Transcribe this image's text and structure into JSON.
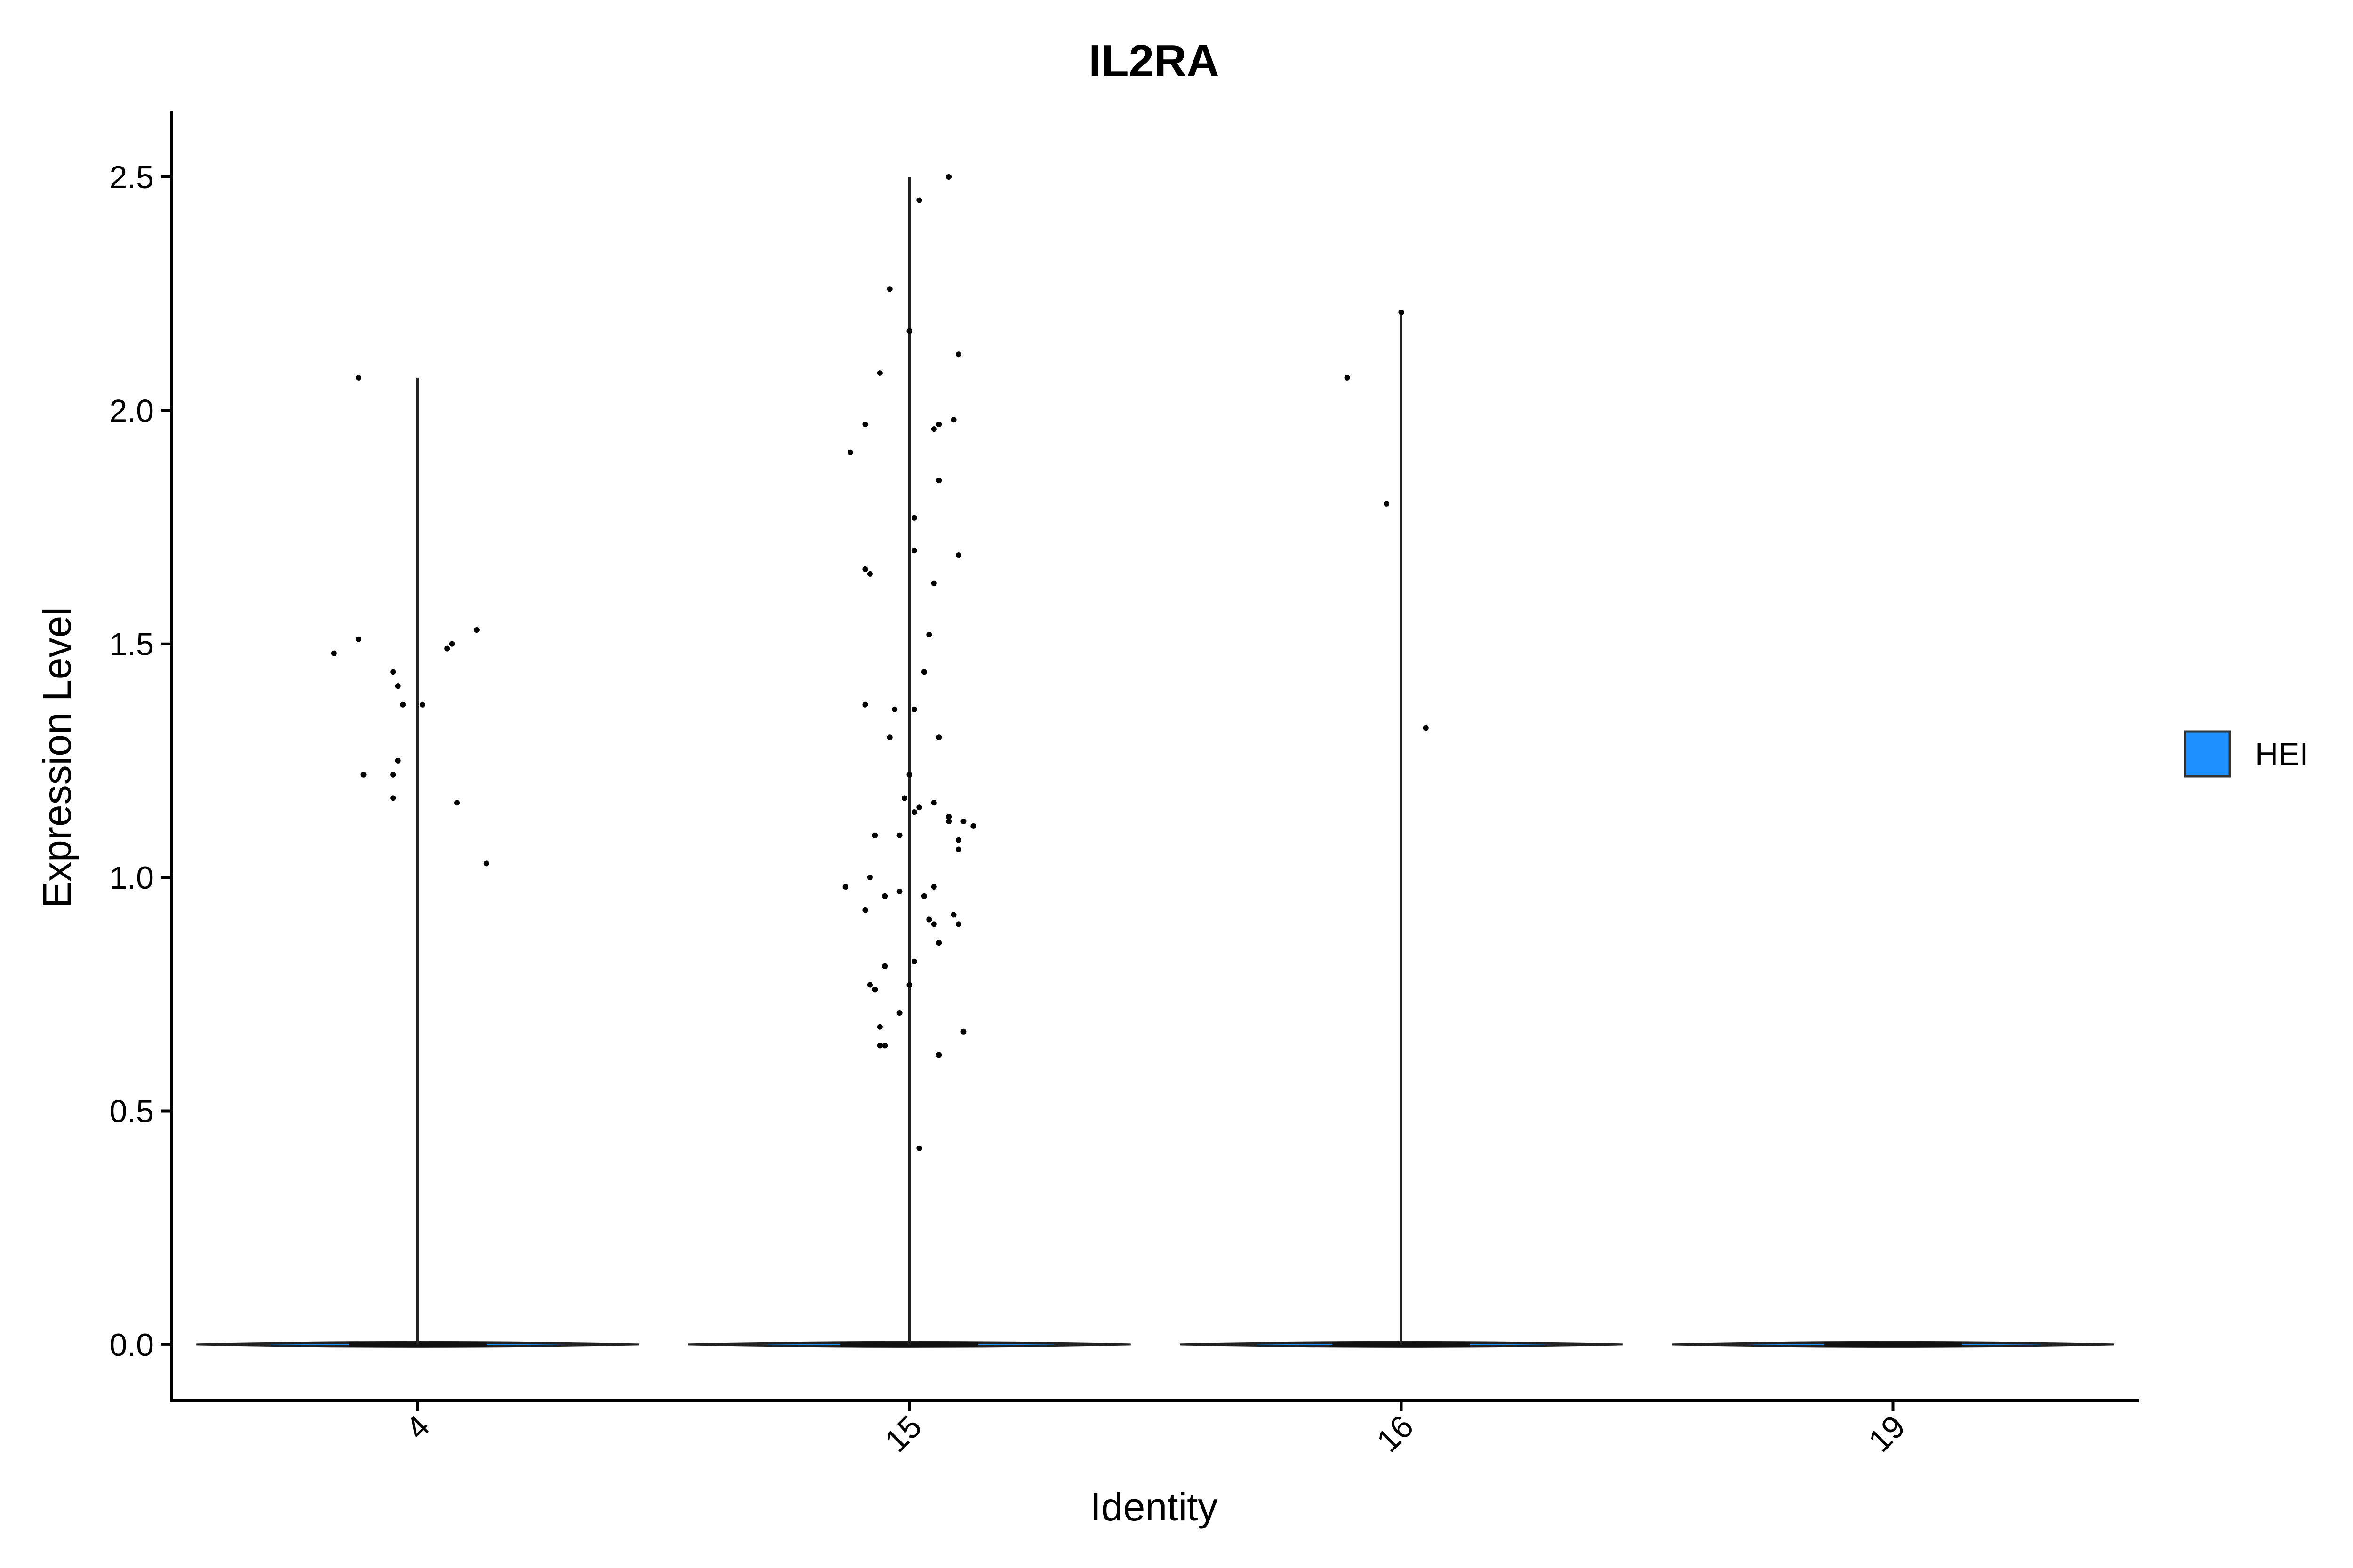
{
  "chart_data": {
    "type": "violin",
    "title": "IL2RA",
    "xlabel": "Identity",
    "ylabel": "Expression Level",
    "categories": [
      "4",
      "15",
      "16",
      "19"
    ],
    "ylim": [
      -0.12,
      2.64
    ],
    "yticks": [
      0.0,
      0.5,
      1.0,
      1.5,
      2.0,
      2.5
    ],
    "ytick_labels": [
      "0.0",
      "0.5",
      "1.0",
      "1.5",
      "2.0",
      "2.5"
    ],
    "grid": false,
    "legend": {
      "position": "right",
      "entries": [
        {
          "label": "HEI",
          "color": "#1E90FF"
        }
      ]
    },
    "violin_max": [
      2.07,
      2.5,
      2.21,
      0.0
    ],
    "points": {
      "4": [
        {
          "x": -0.12,
          "y": 2.07
        },
        {
          "x": -0.12,
          "y": 1.51
        },
        {
          "x": -0.17,
          "y": 1.48
        },
        {
          "x": -0.05,
          "y": 1.44
        },
        {
          "x": -0.04,
          "y": 1.41
        },
        {
          "x": -0.03,
          "y": 1.37
        },
        {
          "x": 0.01,
          "y": 1.37
        },
        {
          "x": 0.06,
          "y": 1.49
        },
        {
          "x": 0.07,
          "y": 1.5
        },
        {
          "x": 0.12,
          "y": 1.53
        },
        {
          "x": -0.11,
          "y": 1.22
        },
        {
          "x": -0.04,
          "y": 1.25
        },
        {
          "x": -0.05,
          "y": 1.22
        },
        {
          "x": -0.05,
          "y": 1.17
        },
        {
          "x": 0.08,
          "y": 1.16
        },
        {
          "x": 0.14,
          "y": 1.03
        }
      ],
      "15": [
        {
          "x": 0.08,
          "y": 2.5
        },
        {
          "x": 0.02,
          "y": 2.45
        },
        {
          "x": -0.04,
          "y": 2.26
        },
        {
          "x": 0.0,
          "y": 2.17
        },
        {
          "x": 0.1,
          "y": 2.12
        },
        {
          "x": -0.06,
          "y": 2.08
        },
        {
          "x": -0.09,
          "y": 1.97
        },
        {
          "x": -0.12,
          "y": 1.91
        },
        {
          "x": 0.05,
          "y": 1.96
        },
        {
          "x": 0.06,
          "y": 1.97
        },
        {
          "x": 0.09,
          "y": 1.98
        },
        {
          "x": 0.06,
          "y": 1.85
        },
        {
          "x": 0.01,
          "y": 1.77
        },
        {
          "x": 0.01,
          "y": 1.7
        },
        {
          "x": 0.1,
          "y": 1.69
        },
        {
          "x": -0.09,
          "y": 1.66
        },
        {
          "x": -0.08,
          "y": 1.65
        },
        {
          "x": 0.05,
          "y": 1.63
        },
        {
          "x": 0.04,
          "y": 1.52
        },
        {
          "x": 0.03,
          "y": 1.44
        },
        {
          "x": -0.09,
          "y": 1.37
        },
        {
          "x": -0.03,
          "y": 1.36
        },
        {
          "x": 0.01,
          "y": 1.36
        },
        {
          "x": 0.06,
          "y": 1.3
        },
        {
          "x": -0.04,
          "y": 1.3
        },
        {
          "x": 0.0,
          "y": 1.22
        },
        {
          "x": -0.01,
          "y": 1.17
        },
        {
          "x": 0.02,
          "y": 1.15
        },
        {
          "x": 0.05,
          "y": 1.16
        },
        {
          "x": 0.08,
          "y": 1.13
        },
        {
          "x": 0.08,
          "y": 1.12
        },
        {
          "x": 0.11,
          "y": 1.12
        },
        {
          "x": 0.13,
          "y": 1.11
        },
        {
          "x": 0.1,
          "y": 1.08
        },
        {
          "x": 0.1,
          "y": 1.06
        },
        {
          "x": -0.07,
          "y": 1.09
        },
        {
          "x": -0.02,
          "y": 1.09
        },
        {
          "x": 0.01,
          "y": 1.14
        },
        {
          "x": -0.13,
          "y": 0.98
        },
        {
          "x": -0.08,
          "y": 1.0
        },
        {
          "x": -0.09,
          "y": 0.93
        },
        {
          "x": -0.05,
          "y": 0.96
        },
        {
          "x": -0.02,
          "y": 0.97
        },
        {
          "x": 0.03,
          "y": 0.96
        },
        {
          "x": 0.05,
          "y": 0.98
        },
        {
          "x": 0.04,
          "y": 0.91
        },
        {
          "x": 0.05,
          "y": 0.9
        },
        {
          "x": 0.09,
          "y": 0.92
        },
        {
          "x": 0.1,
          "y": 0.9
        },
        {
          "x": 0.06,
          "y": 0.86
        },
        {
          "x": -0.05,
          "y": 0.81
        },
        {
          "x": 0.01,
          "y": 0.82
        },
        {
          "x": -0.08,
          "y": 0.77
        },
        {
          "x": -0.07,
          "y": 0.76
        },
        {
          "x": 0.0,
          "y": 0.77
        },
        {
          "x": -0.02,
          "y": 0.71
        },
        {
          "x": -0.06,
          "y": 0.68
        },
        {
          "x": -0.06,
          "y": 0.64
        },
        {
          "x": -0.05,
          "y": 0.64
        },
        {
          "x": 0.11,
          "y": 0.67
        },
        {
          "x": 0.06,
          "y": 0.62
        },
        {
          "x": 0.02,
          "y": 0.42
        }
      ],
      "16": [
        {
          "x": -0.11,
          "y": 2.07
        },
        {
          "x": 0.0,
          "y": 2.21
        },
        {
          "x": -0.03,
          "y": 1.8
        },
        {
          "x": 0.05,
          "y": 1.32
        }
      ],
      "19": []
    }
  }
}
